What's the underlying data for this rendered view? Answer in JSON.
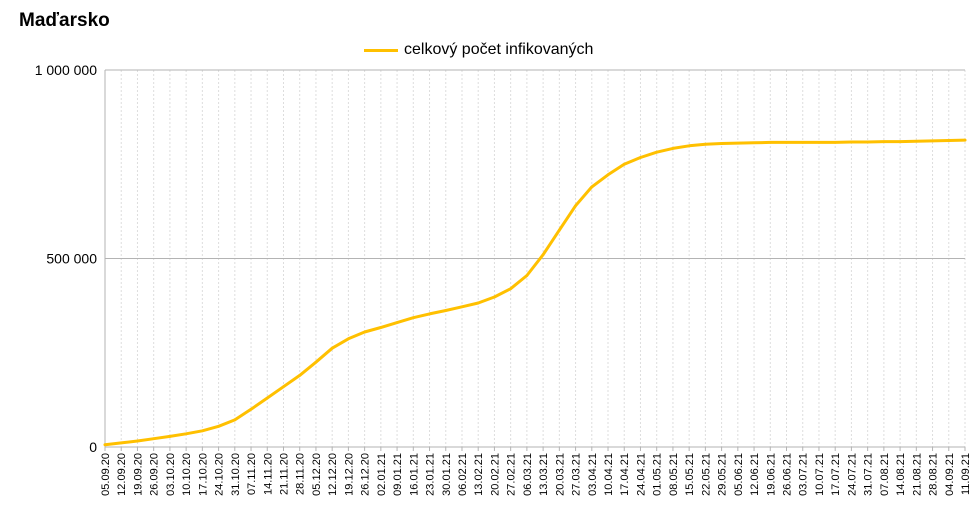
{
  "colors": {
    "series": "#FFC000",
    "grid_major": "#b3b3b3",
    "grid_minor": "#dddddd",
    "axis": "#b3b3b3"
  },
  "chart_data": {
    "type": "line",
    "title": "Maďarsko",
    "xlabel": "",
    "ylabel": "",
    "ylim": [
      0,
      1000000
    ],
    "ytick_labels": [
      "0",
      "500 000",
      "1 000 000"
    ],
    "ytick_values": [
      0,
      500000,
      1000000
    ],
    "grid": true,
    "legend_position": "top-center",
    "categories": [
      "05.09.20",
      "12.09.20",
      "19.09.20",
      "26.09.20",
      "03.10.20",
      "10.10.20",
      "17.10.20",
      "24.10.20",
      "31.10.20",
      "07.11.20",
      "14.11.20",
      "21.11.20",
      "28.11.20",
      "05.12.20",
      "12.12.20",
      "19.12.20",
      "26.12.20",
      "02.01.21",
      "09.01.21",
      "16.01.21",
      "23.01.21",
      "30.01.21",
      "06.02.21",
      "13.02.21",
      "20.02.21",
      "27.02.21",
      "06.03.21",
      "13.03.21",
      "20.03.21",
      "27.03.21",
      "03.04.21",
      "10.04.21",
      "17.04.21",
      "24.04.21",
      "01.05.21",
      "08.05.21",
      "15.05.21",
      "22.05.21",
      "29.05.21",
      "05.06.21",
      "12.06.21",
      "19.06.21",
      "26.06.21",
      "03.07.21",
      "10.07.21",
      "17.07.21",
      "24.07.21",
      "31.07.21",
      "07.08.21",
      "14.08.21",
      "21.08.21",
      "28.08.21",
      "04.09.21",
      "11.09.21"
    ],
    "series": [
      {
        "name": "celkový počet infikovaných",
        "values": [
          6000,
          11000,
          16000,
          22000,
          28000,
          35000,
          43000,
          55000,
          72000,
          100000,
          130000,
          160000,
          190000,
          225000,
          262000,
          287000,
          305000,
          317000,
          330000,
          343000,
          353000,
          362000,
          372000,
          382000,
          398000,
          420000,
          455000,
          510000,
          575000,
          640000,
          690000,
          722000,
          750000,
          768000,
          782000,
          792000,
          799000,
          803000,
          805000,
          806000,
          807000,
          808000,
          808000,
          808000,
          808000,
          808000,
          809000,
          809000,
          810000,
          810000,
          811000,
          812000,
          813000,
          814000
        ]
      }
    ]
  }
}
